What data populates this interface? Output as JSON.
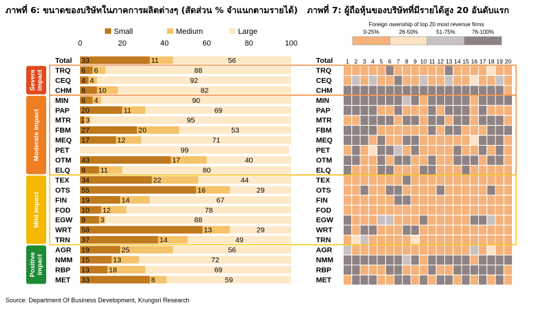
{
  "title_left": "ภาพที่ 6: ขนาดของบริษัทในภาคการผลิตต่างๆ (สัดส่วน % จำแนกตามรายได้)",
  "title_right": "ภาพที่ 7: ผู้ถือหุ้นของบริษัทที่มีรายได้สูง 20 อันดับแรก",
  "source": "Source: Department Of Business Development, Krungsri Research",
  "colors": {
    "small": "#c07a1e",
    "medium": "#f5c36a",
    "large": "#fde9c8",
    "severe": "#e04a1e",
    "moderate": "#ef7d22",
    "mild": "#f5b800",
    "positive": "#1f8a34",
    "frame_orange": "#f08a3c",
    "frame_yellow": "#f5c518",
    "h_0_25": "#f5b27a",
    "h_26_50": "#fde2c6",
    "h_51_75": "#c9c2c2",
    "h_76_100": "#8f8282"
  },
  "groups": [
    {
      "label": "Severe impact",
      "color_key": "severe",
      "start": 1,
      "end": 3
    },
    {
      "label": "Moderate impact",
      "color_key": "moderate",
      "start": 4,
      "end": 11
    },
    {
      "label": "Mild impact",
      "color_key": "mild",
      "start": 12,
      "end": 18
    },
    {
      "label": "Positive impact",
      "color_key": "positive",
      "start": 19,
      "end": 22
    }
  ],
  "chart_data": [
    {
      "type": "bar",
      "stacked": true,
      "orientation": "horizontal",
      "title": "ภาพที่ 6: ขนาดของบริษัทในภาคการผลิตต่างๆ (สัดส่วน % จำแนกตามรายได้)",
      "xlim": [
        0,
        100
      ],
      "xticks": [
        0,
        20,
        40,
        60,
        80,
        100
      ],
      "legend_position": "top",
      "categories": [
        "Total",
        "TRQ",
        "CEQ",
        "CHM",
        "MIN",
        "PAP",
        "MTR",
        "FBM",
        "MEQ",
        "PET",
        "OTM",
        "ELQ",
        "TEX",
        "OTS",
        "FIN",
        "FOD",
        "EGW",
        "WRT",
        "TRN",
        "AGR",
        "NMM",
        "RBP",
        "MET"
      ],
      "series": [
        {
          "name": "Small",
          "color_key": "small",
          "values": [
            33,
            6,
            4,
            8,
            6,
            20,
            2,
            27,
            17,
            0,
            43,
            9,
            34,
            55,
            19,
            10,
            9,
            58,
            37,
            19,
            15,
            13,
            33
          ]
        },
        {
          "name": "Medium",
          "color_key": "medium",
          "values": [
            11,
            6,
            4,
            10,
            4,
            11,
            3,
            20,
            12,
            0,
            17,
            11,
            22,
            16,
            14,
            12,
            3,
            13,
            14,
            25,
            13,
            18,
            8
          ]
        },
        {
          "name": "Large",
          "color_key": "large",
          "values": [
            56,
            88,
            92,
            82,
            90,
            69,
            95,
            53,
            71,
            99,
            40,
            80,
            44,
            29,
            67,
            78,
            88,
            29,
            49,
            56,
            72,
            69,
            59
          ]
        }
      ]
    },
    {
      "type": "heatmap",
      "title": "ภาพที่ 7: ผู้ถือหุ้นของบริษัทที่มีรายได้สูง 20 อันดับแรก",
      "legend_title": "Foreign owenship of top 20 most revenue firms",
      "legend": [
        {
          "label": "0-25%",
          "level": 0
        },
        {
          "label": "26-50%",
          "level": 1
        },
        {
          "label": "51-75%",
          "level": 2
        },
        {
          "label": "76-100%",
          "level": 3
        }
      ],
      "columns": [
        "1",
        "2",
        "3",
        "4",
        "5",
        "6",
        "7",
        "8",
        "9",
        "10",
        "11",
        "12",
        "13",
        "14",
        "15",
        "16",
        "17",
        "18",
        "19",
        "20"
      ],
      "rows": [
        "Total",
        "TRQ",
        "CEQ",
        "CHM",
        "MIN",
        "PAP",
        "MTR",
        "FBM",
        "MEQ",
        "PET",
        "OTM",
        "ELQ",
        "TEX",
        "OTS",
        "FIN",
        "FOD",
        "EGW",
        "WRT",
        "TRN",
        "AGR",
        "NMM",
        "RBP",
        "MET"
      ],
      "values": [
        [
          3,
          3,
          3,
          3,
          3,
          3,
          3,
          3,
          3,
          3,
          3,
          3,
          3,
          3,
          3,
          3,
          3,
          3,
          3,
          3
        ],
        [
          0,
          0,
          0,
          0,
          0,
          3,
          0,
          0,
          0,
          0,
          0,
          0,
          3,
          0,
          0,
          0,
          0,
          1,
          0,
          0
        ],
        [
          0,
          2,
          0,
          2,
          0,
          0,
          3,
          0,
          0,
          2,
          0,
          0,
          2,
          0,
          0,
          1,
          0,
          0,
          2,
          0
        ],
        [
          3,
          3,
          3,
          3,
          3,
          3,
          3,
          3,
          3,
          3,
          3,
          3,
          3,
          3,
          3,
          3,
          3,
          3,
          3,
          0
        ],
        [
          3,
          3,
          3,
          3,
          3,
          3,
          3,
          2,
          3,
          0,
          3,
          3,
          3,
          3,
          3,
          0,
          3,
          3,
          3,
          3
        ],
        [
          3,
          3,
          3,
          3,
          0,
          0,
          3,
          0,
          0,
          0,
          3,
          0,
          3,
          3,
          3,
          0,
          3,
          0,
          0,
          0
        ],
        [
          0,
          0,
          3,
          3,
          3,
          3,
          0,
          3,
          3,
          0,
          3,
          3,
          0,
          3,
          3,
          0,
          3,
          3,
          3,
          0
        ],
        [
          3,
          3,
          3,
          3,
          0,
          0,
          0,
          0,
          0,
          0,
          3,
          0,
          3,
          3,
          0,
          0,
          0,
          3,
          3,
          3
        ],
        [
          3,
          3,
          3,
          0,
          3,
          0,
          0,
          3,
          3,
          0,
          0,
          0,
          0,
          0,
          0,
          1,
          3,
          3,
          3,
          0
        ],
        [
          0,
          3,
          0,
          1,
          3,
          3,
          2,
          0,
          3,
          0,
          0,
          0,
          0,
          3,
          0,
          0,
          3,
          0,
          3,
          0
        ],
        [
          3,
          3,
          0,
          0,
          3,
          0,
          3,
          3,
          0,
          0,
          3,
          0,
          0,
          3,
          3,
          3,
          0,
          3,
          3,
          0
        ],
        [
          3,
          0,
          0,
          0,
          3,
          3,
          0,
          0,
          0,
          3,
          3,
          0,
          0,
          0,
          3,
          0,
          0,
          0,
          0,
          0
        ],
        [
          0,
          0,
          0,
          0,
          0,
          0,
          0,
          3,
          0,
          0,
          0,
          0,
          0,
          0,
          0,
          0,
          0,
          0,
          0,
          0
        ],
        [
          0,
          0,
          3,
          0,
          0,
          3,
          3,
          0,
          0,
          0,
          0,
          3,
          0,
          0,
          0,
          0,
          0,
          3,
          0,
          0
        ],
        [
          0,
          0,
          0,
          0,
          0,
          0,
          3,
          3,
          0,
          0,
          0,
          0,
          0,
          0,
          0,
          0,
          0,
          0,
          0,
          0
        ],
        [
          0,
          0,
          0,
          0,
          0,
          0,
          0,
          0,
          0,
          0,
          0,
          0,
          0,
          0,
          0,
          0,
          0,
          0,
          0,
          0
        ],
        [
          3,
          0,
          0,
          0,
          2,
          2,
          0,
          0,
          0,
          3,
          0,
          0,
          0,
          0,
          0,
          3,
          3,
          2,
          0,
          0
        ],
        [
          3,
          0,
          3,
          3,
          0,
          0,
          0,
          3,
          3,
          0,
          0,
          0,
          0,
          0,
          0,
          0,
          0,
          0,
          0,
          0
        ],
        [
          0,
          1,
          2,
          0,
          0,
          0,
          0,
          0,
          1,
          0,
          0,
          0,
          0,
          0,
          0,
          0,
          0,
          0,
          0,
          0
        ],
        [
          2,
          0,
          0,
          0,
          0,
          0,
          0,
          0,
          0,
          0,
          0,
          0,
          0,
          0,
          0,
          2,
          0,
          1,
          0,
          0
        ],
        [
          3,
          3,
          3,
          3,
          3,
          3,
          3,
          2,
          3,
          0,
          3,
          3,
          3,
          3,
          3,
          0,
          3,
          3,
          3,
          3
        ],
        [
          3,
          3,
          0,
          0,
          0,
          3,
          3,
          0,
          0,
          0,
          3,
          0,
          0,
          3,
          3,
          3,
          3,
          3,
          3,
          0
        ],
        [
          0,
          3,
          3,
          3,
          0,
          0,
          3,
          3,
          0,
          3,
          0,
          3,
          3,
          0,
          3,
          0,
          3,
          0,
          3,
          0
        ]
      ]
    }
  ]
}
